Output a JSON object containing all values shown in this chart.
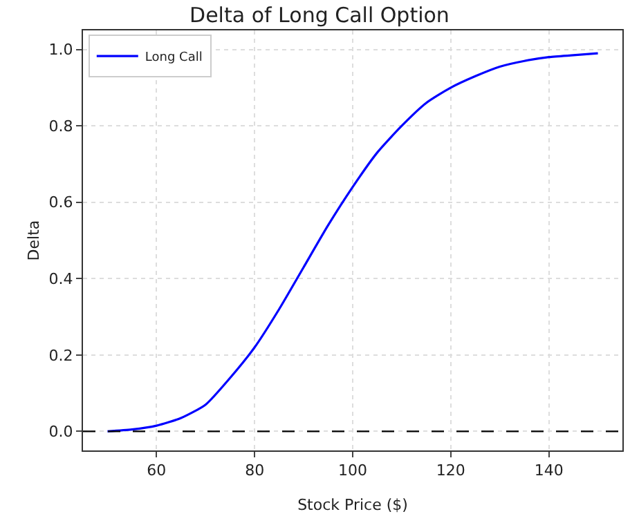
{
  "chart_data": {
    "type": "line",
    "title": "Delta of Long Call Option",
    "xlabel": "Stock Price ($)",
    "ylabel": "Delta",
    "x": [
      50,
      55,
      60,
      65,
      70,
      75,
      80,
      85,
      90,
      95,
      100,
      105,
      110,
      115,
      120,
      125,
      130,
      135,
      140,
      145,
      150
    ],
    "series": [
      {
        "name": "Long Call",
        "color": "#0000ff",
        "values": [
          0.0,
          0.005,
          0.015,
          0.035,
          0.07,
          0.14,
          0.22,
          0.32,
          0.43,
          0.54,
          0.64,
          0.73,
          0.8,
          0.86,
          0.9,
          0.93,
          0.955,
          0.97,
          0.98,
          0.985,
          0.99
        ]
      }
    ],
    "xlim": [
      45,
      155
    ],
    "xticks": [
      60,
      80,
      100,
      120,
      140
    ],
    "ylim": [
      -0.05,
      1.05
    ],
    "yticks": [
      {
        "value": 0,
        "label": "0.0"
      },
      {
        "value": 0.2,
        "label": "0.2"
      },
      {
        "value": 0.4,
        "label": "0.4"
      },
      {
        "value": 0.6,
        "label": "0.6"
      },
      {
        "value": 0.8,
        "label": "0.8"
      },
      {
        "value": 1,
        "label": "1.0"
      }
    ],
    "ref_lines": [
      {
        "axis": "y",
        "value": 0,
        "color": "#000000",
        "line_style": "dashed"
      }
    ],
    "grid": true,
    "legend": "top left",
    "marker": "none",
    "line_style": "solid"
  }
}
